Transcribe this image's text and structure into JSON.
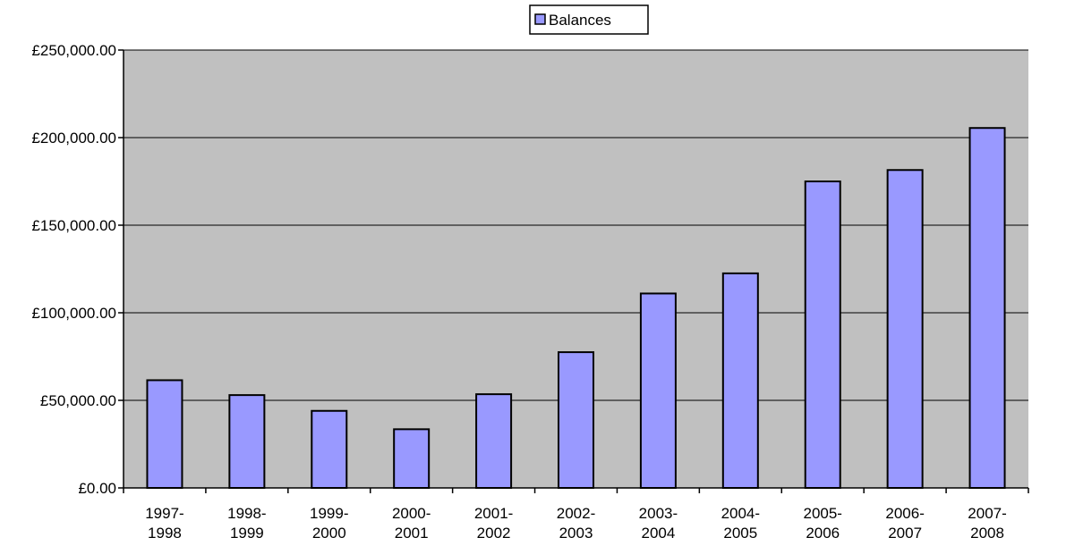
{
  "colors": {
    "plot_background": "#c0c0c0",
    "bar_fill": "#9999ff",
    "bar_stroke": "#000000",
    "gridline": "#000000"
  },
  "chart_data": {
    "type": "bar",
    "categories": [
      [
        "1997-",
        "1998"
      ],
      [
        "1998-",
        "1999"
      ],
      [
        "1999-",
        "2000"
      ],
      [
        "2000-",
        "2001"
      ],
      [
        "2001-",
        "2002"
      ],
      [
        "2002-",
        "2003"
      ],
      [
        "2003-",
        "2004"
      ],
      [
        "2004-",
        "2005"
      ],
      [
        "2005-",
        "2006"
      ],
      [
        "2006-",
        "2007"
      ],
      [
        "2007-",
        "2008"
      ]
    ],
    "series": [
      {
        "name": "Balances",
        "values": [
          61500,
          53000,
          44000,
          33500,
          53500,
          77500,
          111000,
          122500,
          175000,
          181500,
          205500
        ]
      }
    ],
    "ylim": [
      0,
      250000
    ],
    "yticks": [
      0,
      50000,
      100000,
      150000,
      200000,
      250000
    ],
    "ytick_labels": [
      "£0.00",
      "£50,000.00",
      "£100,000.00",
      "£150,000.00",
      "£200,000.00",
      "£250,000.00"
    ],
    "grid": true,
    "legend": {
      "position": "top-center"
    }
  }
}
